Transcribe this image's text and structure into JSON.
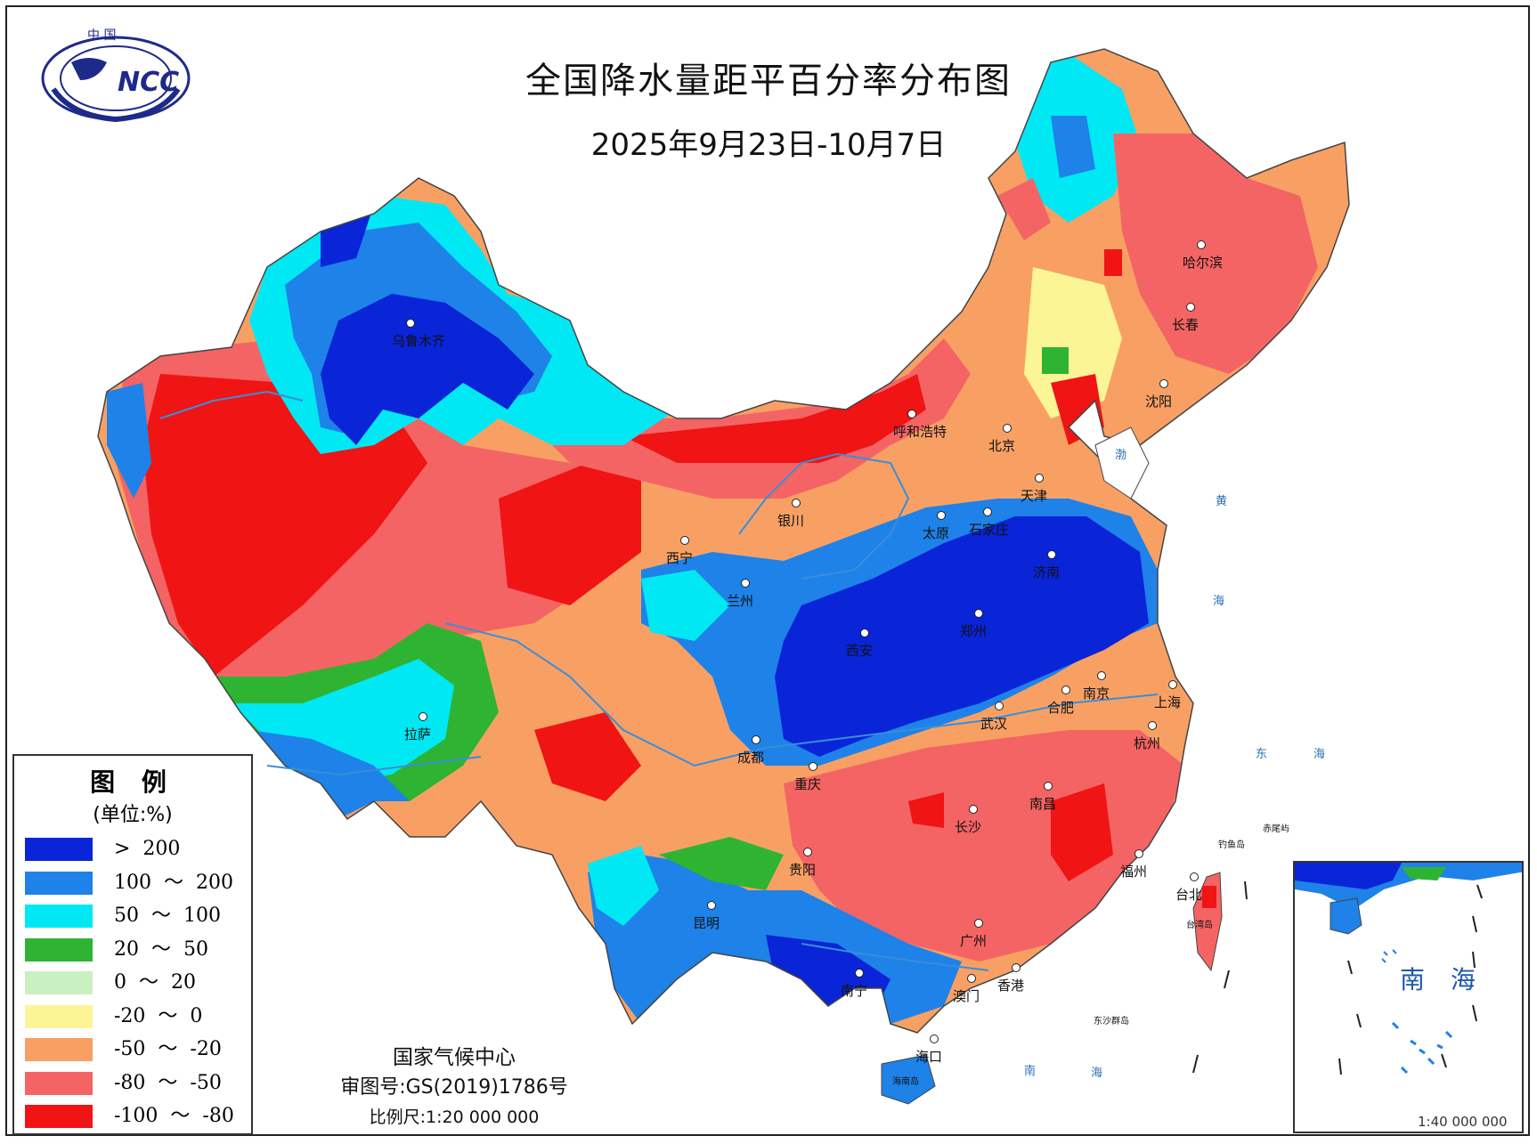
{
  "title": "全国降水量距平百分率分布图",
  "date_range": "2025年9月23日-10月7日",
  "logo": {
    "top_text": "中  国",
    "center_text": "NCC"
  },
  "legend": {
    "title": "图 例",
    "unit": "(单位:%)",
    "items": [
      {
        "label": ">  200",
        "color": "#0a24d8"
      },
      {
        "label": "100  ～  200",
        "color": "#1e82e8"
      },
      {
        "label": "50  ～  100",
        "color": "#00e8f4"
      },
      {
        "label": "20  ～  50",
        "color": "#2eb432"
      },
      {
        "label": "0  ～  20",
        "color": "#c8f0c0"
      },
      {
        "label": "-20  ～  0",
        "color": "#fbf596"
      },
      {
        "label": "-50  ～  -20",
        "color": "#f8a064"
      },
      {
        "label": "-80  ～  -50",
        "color": "#f46464"
      },
      {
        "label": "-100  ～  -80",
        "color": "#f01414"
      }
    ]
  },
  "credits": {
    "center": "国家气候中心",
    "approval": "审图号:GS(2019)1786号",
    "scale": "比例尺:1:20 000 000"
  },
  "cities": [
    {
      "name": "乌鲁木齐"
    },
    {
      "name": "呼和浩特"
    },
    {
      "name": "北京"
    },
    {
      "name": "天津"
    },
    {
      "name": "哈尔滨"
    },
    {
      "name": "长春"
    },
    {
      "name": "沈阳"
    },
    {
      "name": "银川"
    },
    {
      "name": "西宁"
    },
    {
      "name": "太原"
    },
    {
      "name": "石家庄"
    },
    {
      "name": "济南"
    },
    {
      "name": "兰州"
    },
    {
      "name": "郑州"
    },
    {
      "name": "西安"
    },
    {
      "name": "南京"
    },
    {
      "name": "合肥"
    },
    {
      "name": "上海"
    },
    {
      "name": "武汉"
    },
    {
      "name": "杭州"
    },
    {
      "name": "拉萨"
    },
    {
      "name": "成都"
    },
    {
      "name": "重庆"
    },
    {
      "name": "南昌"
    },
    {
      "name": "长沙"
    },
    {
      "name": "福州"
    },
    {
      "name": "贵阳"
    },
    {
      "name": "台北"
    },
    {
      "name": "昆明"
    },
    {
      "name": "广州"
    },
    {
      "name": "南宁"
    },
    {
      "name": "香港"
    },
    {
      "name": "澳门"
    },
    {
      "name": "海口"
    }
  ],
  "sea_labels": [
    "渤",
    "黄",
    "海",
    "东",
    "海",
    "南",
    "海",
    "赤尾屿",
    "钓鱼岛",
    "东沙群岛",
    "台湾岛",
    "海南岛"
  ],
  "inset": {
    "label": "南 海",
    "scale_text": "1:40 000 000"
  }
}
